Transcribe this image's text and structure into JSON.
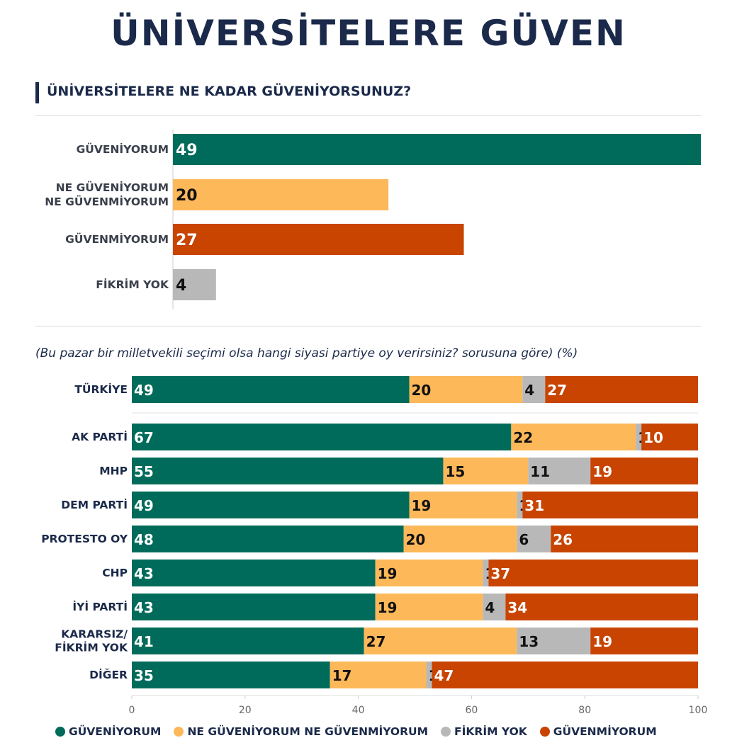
{
  "header": {
    "title": "ÜNİVERSİTELERE GÜVEN",
    "question": "ÜNİVERSİTELERE NE KADAR GÜVENİYORSUNUZ?",
    "subtitle": "(Bu pazar bir milletvekili seçimi olsa hangi siyasi partiye oy verirsiniz? sorusuna göre) (%)"
  },
  "colors": {
    "trust": "#006b5a",
    "neutral": "#fdb85a",
    "noidea": "#b8b8b8",
    "distrust": "#c84400"
  },
  "chart_data": [
    {
      "type": "bar",
      "orientation": "horizontal",
      "title": "ÜNİVERSİTELERE NE KADAR GÜVENİYORSUNUZ?",
      "categories": [
        "GÜVENİYORUM",
        "NE GÜVENİYORUM NE GÜVENMİYORUM",
        "GÜVENMİYORUM",
        "FİKRİM YOK"
      ],
      "category_lines": [
        [
          "GÜVENİYORUM"
        ],
        [
          "NE GÜVENİYORUM",
          "NE GÜVENMİYORUM"
        ],
        [
          "GÜVENMİYORUM"
        ],
        [
          "FİKRİM YOK"
        ]
      ],
      "values": [
        49,
        20,
        27,
        4
      ],
      "color_keys": [
        "trust",
        "neutral",
        "distrust",
        "noidea"
      ]
    },
    {
      "type": "bar",
      "orientation": "horizontal",
      "stacked": true,
      "title": "(Bu pazar bir milletvekili seçimi olsa hangi siyasi partiye oy verirsiniz? sorusuna göre) (%)",
      "categories": [
        "TÜRKİYE",
        "AK PARTİ",
        "MHP",
        "DEM PARTİ",
        "PROTESTO OY",
        "CHP",
        "İYİ PARTİ",
        "KARARSIZ/ FİKRİM YOK",
        "DİĞER"
      ],
      "category_lines": [
        [
          "TÜRKİYE"
        ],
        [
          "AK PARTİ"
        ],
        [
          "MHP"
        ],
        [
          "DEM PARTİ"
        ],
        [
          "PROTESTO OY"
        ],
        [
          "CHP"
        ],
        [
          "İYİ PARTİ"
        ],
        [
          "KARARSIZ/",
          "FİKRİM YOK"
        ],
        [
          "DİĞER"
        ]
      ],
      "series": [
        {
          "name": "GÜVENİYORUM",
          "color_key": "trust",
          "values": [
            49,
            67,
            55,
            49,
            48,
            43,
            43,
            41,
            35
          ]
        },
        {
          "name": "NE GÜVENİYORUM NE GÜVENMİYORUM",
          "color_key": "neutral",
          "values": [
            20,
            22,
            15,
            19,
            20,
            19,
            19,
            27,
            17
          ]
        },
        {
          "name": "FİKRİM YOK",
          "color_key": "noidea",
          "values": [
            4,
            1,
            11,
            1,
            6,
            1,
            4,
            13,
            1
          ]
        },
        {
          "name": "GÜVENMİYORUM",
          "color_key": "distrust",
          "values": [
            27,
            10,
            19,
            31,
            26,
            37,
            34,
            19,
            47
          ]
        }
      ],
      "xlim": [
        0,
        100
      ],
      "xticks": [
        0,
        20,
        40,
        60,
        80,
        100
      ]
    }
  ],
  "legend": [
    {
      "label": "GÜVENİYORUM",
      "color_key": "trust"
    },
    {
      "label": "NE GÜVENİYORUM NE GÜVENMİYORUM",
      "color_key": "neutral"
    },
    {
      "label": "FİKRİM YOK",
      "color_key": "noidea"
    },
    {
      "label": "GÜVENMİYORUM",
      "color_key": "distrust"
    }
  ]
}
